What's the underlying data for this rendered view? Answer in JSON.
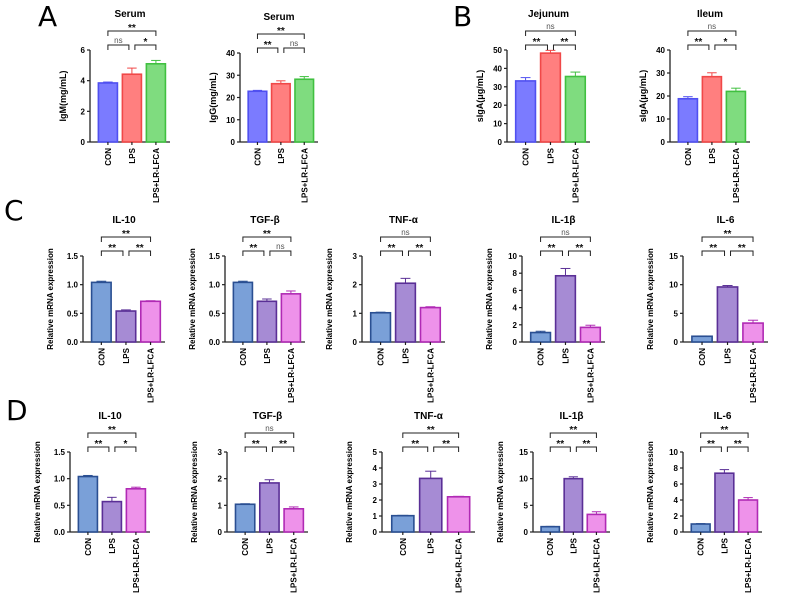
{
  "panel_letters": [
    "A",
    "B",
    "C",
    "D"
  ],
  "colors": {
    "ab": {
      "fill": [
        "#7b7bff",
        "#ff7f7f",
        "#7fdc7f"
      ],
      "edge": [
        "#5050f0",
        "#f04848",
        "#40c040"
      ]
    },
    "cd": {
      "fill": [
        "#7aa0d8",
        "#a68bd4",
        "#ee92ea"
      ],
      "edge": [
        "#2a4f92",
        "#5a2f96",
        "#b02ab4"
      ]
    }
  },
  "chart_data": [
    {
      "type": "bar",
      "panel": "A",
      "title": "Serum",
      "ylabel": "IgM(mg/mL)",
      "categories": [
        "CON",
        "LPS",
        "LPS+LR-LFCA"
      ],
      "values": [
        3.85,
        4.42,
        5.1
      ],
      "errors": [
        0.06,
        0.4,
        0.22
      ],
      "ylim": [
        0,
        6
      ],
      "yticks": [
        "0",
        "2",
        "4",
        "6"
      ],
      "scheme": "ab",
      "significance": [
        {
          "from": 0,
          "to": 1,
          "label": "ns",
          "level": 0
        },
        {
          "from": 1,
          "to": 2,
          "label": "*",
          "level": 0
        },
        {
          "from": 0,
          "to": 2,
          "label": "**",
          "level": 1
        }
      ]
    },
    {
      "type": "bar",
      "panel": "A",
      "title": "Serum",
      "ylabel": "IgG(mg/mL)",
      "categories": [
        "CON",
        "LPS",
        "LPS+LR-LFCA"
      ],
      "values": [
        22.8,
        26.2,
        28.2
      ],
      "errors": [
        0.4,
        1.3,
        1.2
      ],
      "ylim": [
        0,
        40
      ],
      "yticks": [
        "0",
        "10",
        "20",
        "30",
        "40"
      ],
      "scheme": "ab",
      "significance": [
        {
          "from": 0,
          "to": 1,
          "label": "**",
          "level": 0
        },
        {
          "from": 1,
          "to": 2,
          "label": "ns",
          "level": 0
        },
        {
          "from": 0,
          "to": 2,
          "label": "**",
          "level": 1
        }
      ]
    },
    {
      "type": "bar",
      "panel": "B",
      "title": "Jejunum",
      "ylabel": "sIgA(μg/mL)",
      "categories": [
        "CON",
        "LPS",
        "LPS+LR-LFCA"
      ],
      "values": [
        33.2,
        48.3,
        35.6
      ],
      "errors": [
        1.8,
        1.5,
        2.4
      ],
      "ylim": [
        0,
        50
      ],
      "yticks": [
        "0",
        "10",
        "20",
        "30",
        "40",
        "50"
      ],
      "scheme": "ab",
      "significance": [
        {
          "from": 0,
          "to": 1,
          "label": "**",
          "level": 0
        },
        {
          "from": 1,
          "to": 2,
          "label": "**",
          "level": 0
        },
        {
          "from": 0,
          "to": 2,
          "label": "ns",
          "level": 1
        }
      ]
    },
    {
      "type": "bar",
      "panel": "B",
      "title": "Ileum",
      "ylabel": "sIgA(μg/mL)",
      "categories": [
        "CON",
        "LPS",
        "LPS+LR-LFCA"
      ],
      "values": [
        18.8,
        28.4,
        22.0
      ],
      "errors": [
        0.9,
        1.7,
        1.4
      ],
      "ylim": [
        0,
        40
      ],
      "yticks": [
        "0",
        "10",
        "20",
        "30",
        "40"
      ],
      "scheme": "ab",
      "significance": [
        {
          "from": 0,
          "to": 1,
          "label": "**",
          "level": 0
        },
        {
          "from": 1,
          "to": 2,
          "label": "*",
          "level": 0
        },
        {
          "from": 0,
          "to": 2,
          "label": "ns",
          "level": 1
        }
      ]
    },
    {
      "type": "bar",
      "panel": "C",
      "title": "IL-10",
      "ylabel": "Relative mRNA expression",
      "categories": [
        "CON",
        "LPS",
        "LPS+LR-LFCA"
      ],
      "values": [
        1.04,
        0.54,
        0.71
      ],
      "errors": [
        0.02,
        0.02,
        0.01
      ],
      "ylim": [
        0,
        1.5
      ],
      "yticks": [
        "0.0",
        "0.5",
        "1.0",
        "1.5"
      ],
      "scheme": "cd",
      "significance": [
        {
          "from": 0,
          "to": 1,
          "label": "**",
          "level": 0
        },
        {
          "from": 1,
          "to": 2,
          "label": "**",
          "level": 0
        },
        {
          "from": 0,
          "to": 2,
          "label": "**",
          "level": 1
        }
      ]
    },
    {
      "type": "bar",
      "panel": "C",
      "title": "TGF-β",
      "ylabel": "Relative mRNA expression",
      "categories": [
        "CON",
        "LPS",
        "LPS+LR-LFCA"
      ],
      "values": [
        1.04,
        0.71,
        0.84
      ],
      "errors": [
        0.02,
        0.04,
        0.05
      ],
      "ylim": [
        0,
        1.5
      ],
      "yticks": [
        "0.0",
        "0.5",
        "1.0",
        "1.5"
      ],
      "scheme": "cd",
      "significance": [
        {
          "from": 0,
          "to": 1,
          "label": "**",
          "level": 0
        },
        {
          "from": 1,
          "to": 2,
          "label": "ns",
          "level": 0
        },
        {
          "from": 0,
          "to": 2,
          "label": "**",
          "level": 1
        }
      ]
    },
    {
      "type": "bar",
      "panel": "C",
      "title": "TNF-α",
      "ylabel": "Relative mRNA expression",
      "categories": [
        "CON",
        "LPS",
        "LPS+LR-LFCA"
      ],
      "values": [
        1.02,
        2.05,
        1.2
      ],
      "errors": [
        0.02,
        0.17,
        0.03
      ],
      "ylim": [
        0,
        3
      ],
      "yticks": [
        "0",
        "1",
        "2",
        "3"
      ],
      "scheme": "cd",
      "significance": [
        {
          "from": 0,
          "to": 1,
          "label": "**",
          "level": 0
        },
        {
          "from": 1,
          "to": 2,
          "label": "**",
          "level": 0
        },
        {
          "from": 0,
          "to": 2,
          "label": "ns",
          "level": 1
        }
      ]
    },
    {
      "type": "bar",
      "panel": "C",
      "title": "IL-1β",
      "ylabel": "Relative mRNA expression",
      "categories": [
        "CON",
        "LPS",
        "LPS+LR-LFCA"
      ],
      "values": [
        1.1,
        7.7,
        1.7
      ],
      "errors": [
        0.15,
        0.85,
        0.25
      ],
      "ylim": [
        0,
        10
      ],
      "yticks": [
        "0",
        "2",
        "4",
        "6",
        "8",
        "10"
      ],
      "scheme": "cd",
      "significance": [
        {
          "from": 0,
          "to": 1,
          "label": "**",
          "level": 0
        },
        {
          "from": 1,
          "to": 2,
          "label": "**",
          "level": 0
        },
        {
          "from": 0,
          "to": 2,
          "label": "ns",
          "level": 1
        }
      ]
    },
    {
      "type": "bar",
      "panel": "C",
      "title": "IL-6",
      "ylabel": "Relative mRNA expression",
      "categories": [
        "CON",
        "LPS",
        "LPS+LR-LFCA"
      ],
      "values": [
        1.0,
        9.6,
        3.3
      ],
      "errors": [
        0.05,
        0.25,
        0.5
      ],
      "ylim": [
        0,
        15
      ],
      "yticks": [
        "0",
        "5",
        "10",
        "15"
      ],
      "scheme": "cd",
      "significance": [
        {
          "from": 0,
          "to": 1,
          "label": "**",
          "level": 0
        },
        {
          "from": 1,
          "to": 2,
          "label": "**",
          "level": 0
        },
        {
          "from": 0,
          "to": 2,
          "label": "**",
          "level": 1
        }
      ]
    },
    {
      "type": "bar",
      "panel": "D",
      "title": "IL-10",
      "ylabel": "Relative mRNA expression",
      "categories": [
        "CON",
        "LPS",
        "LPS+LR-LFCA"
      ],
      "values": [
        1.04,
        0.57,
        0.81
      ],
      "errors": [
        0.02,
        0.08,
        0.03
      ],
      "ylim": [
        0,
        1.5
      ],
      "yticks": [
        "0.0",
        "0.5",
        "1.0",
        "1.5"
      ],
      "scheme": "cd",
      "significance": [
        {
          "from": 0,
          "to": 1,
          "label": "**",
          "level": 0
        },
        {
          "from": 1,
          "to": 2,
          "label": "*",
          "level": 0
        },
        {
          "from": 0,
          "to": 2,
          "label": "**",
          "level": 1
        }
      ]
    },
    {
      "type": "bar",
      "panel": "D",
      "title": "TGF-β",
      "ylabel": "Relative mRNA expression",
      "categories": [
        "CON",
        "LPS",
        "LPS+LR-LFCA"
      ],
      "values": [
        1.04,
        1.84,
        0.87
      ],
      "errors": [
        0.02,
        0.12,
        0.07
      ],
      "ylim": [
        0,
        3
      ],
      "yticks": [
        "0",
        "1",
        "2",
        "3"
      ],
      "scheme": "cd",
      "significance": [
        {
          "from": 0,
          "to": 1,
          "label": "**",
          "level": 0
        },
        {
          "from": 1,
          "to": 2,
          "label": "**",
          "level": 0
        },
        {
          "from": 0,
          "to": 2,
          "label": "ns",
          "level": 1
        }
      ]
    },
    {
      "type": "bar",
      "panel": "D",
      "title": "TNF-α",
      "ylabel": "Relative mRNA expression",
      "categories": [
        "CON",
        "LPS",
        "LPS+LR-LFCA"
      ],
      "values": [
        1.02,
        3.35,
        2.2
      ],
      "errors": [
        0.02,
        0.45,
        0.03
      ],
      "ylim": [
        0,
        5
      ],
      "yticks": [
        "0",
        "1",
        "2",
        "3",
        "4",
        "5"
      ],
      "scheme": "cd",
      "significance": [
        {
          "from": 0,
          "to": 1,
          "label": "**",
          "level": 0
        },
        {
          "from": 1,
          "to": 2,
          "label": "**",
          "level": 0
        },
        {
          "from": 0,
          "to": 2,
          "label": "**",
          "level": 1
        }
      ]
    },
    {
      "type": "bar",
      "panel": "D",
      "title": "IL-1β",
      "ylabel": "Relative mRNA expression",
      "categories": [
        "CON",
        "LPS",
        "LPS+LR-LFCA"
      ],
      "values": [
        1.0,
        10.0,
        3.3
      ],
      "errors": [
        0.05,
        0.35,
        0.5
      ],
      "ylim": [
        0,
        15
      ],
      "yticks": [
        "0",
        "5",
        "10",
        "15"
      ],
      "scheme": "cd",
      "significance": [
        {
          "from": 0,
          "to": 1,
          "label": "**",
          "level": 0
        },
        {
          "from": 1,
          "to": 2,
          "label": "**",
          "level": 0
        },
        {
          "from": 0,
          "to": 2,
          "label": "**",
          "level": 1
        }
      ]
    },
    {
      "type": "bar",
      "panel": "D",
      "title": "IL-6",
      "ylabel": "Relative mRNA expression",
      "categories": [
        "CON",
        "LPS",
        "LPS+LR-LFCA"
      ],
      "values": [
        1.0,
        7.35,
        4.0
      ],
      "errors": [
        0.05,
        0.45,
        0.3
      ],
      "ylim": [
        0,
        10
      ],
      "yticks": [
        "0",
        "2",
        "4",
        "6",
        "8",
        "10"
      ],
      "scheme": "cd",
      "significance": [
        {
          "from": 0,
          "to": 1,
          "label": "**",
          "level": 0
        },
        {
          "from": 1,
          "to": 2,
          "label": "**",
          "level": 0
        },
        {
          "from": 0,
          "to": 2,
          "label": "**",
          "level": 1
        }
      ]
    }
  ]
}
